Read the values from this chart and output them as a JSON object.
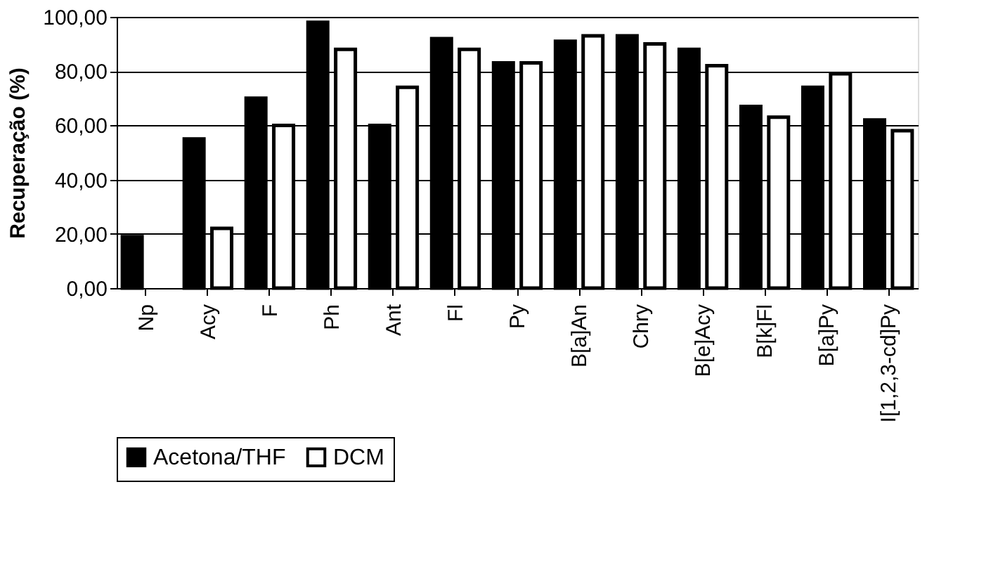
{
  "chart_data": {
    "type": "bar",
    "ylabel": "Recuperação (%)",
    "categories": [
      "Np",
      "Acy",
      "F",
      "Ph",
      "Ant",
      "Fl",
      "Py",
      "B[a]An",
      "Chry",
      "B[e]Acy",
      "B[k]Fl",
      "B[a]Py",
      "I[1,2,3-cd]Py"
    ],
    "series": [
      {
        "name": "Acetona/THF",
        "color": "#000000",
        "values": [
          19,
          55,
          70,
          98,
          60,
          92,
          83,
          91,
          93,
          88,
          67,
          74,
          62
        ]
      },
      {
        "name": "DCM",
        "color": "#ffffff",
        "values": [
          null,
          22,
          60,
          88,
          74,
          88,
          83,
          93,
          90,
          82,
          63,
          79,
          58
        ]
      }
    ],
    "ylim": [
      0,
      100
    ],
    "yticks": [
      {
        "value": 0,
        "label": "0,00"
      },
      {
        "value": 20,
        "label": "20,00"
      },
      {
        "value": 40,
        "label": "40,00"
      },
      {
        "value": 60,
        "label": "60,00"
      },
      {
        "value": 80,
        "label": "80,00"
      },
      {
        "value": 100,
        "label": "100,00"
      }
    ],
    "grid": "y",
    "legend": "bottom"
  }
}
